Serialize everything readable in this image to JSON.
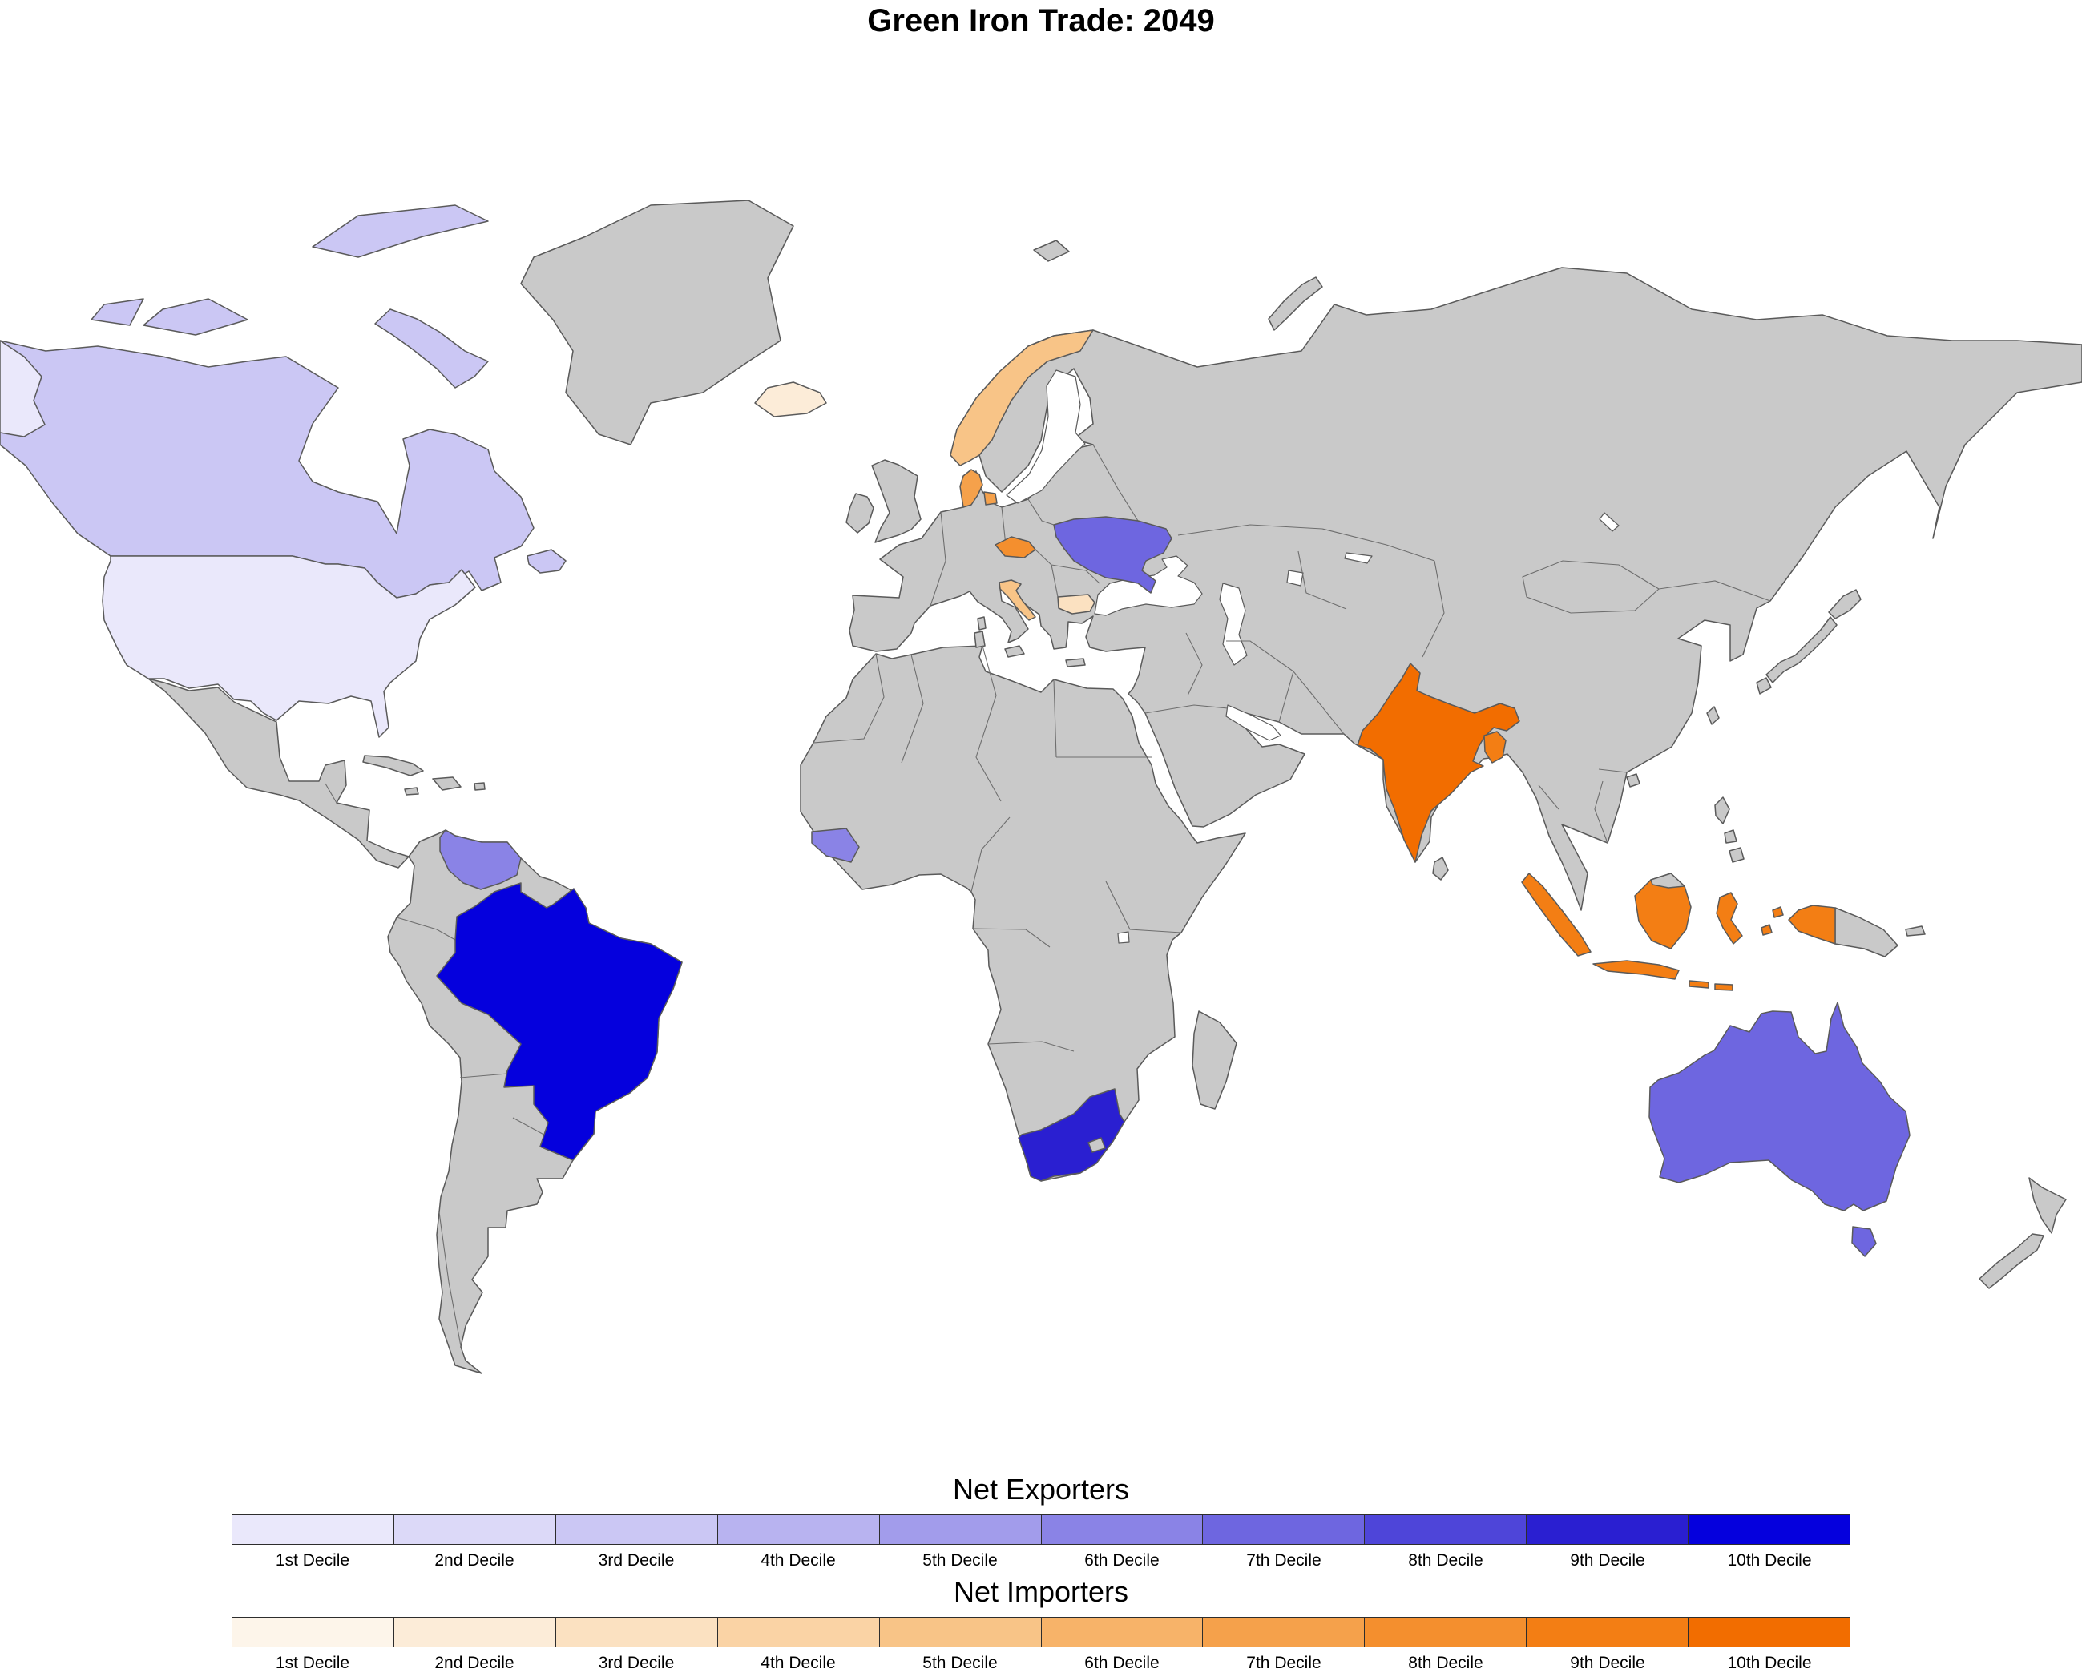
{
  "title": "Green Iron Trade: 2049",
  "legends": {
    "exporters": {
      "title": "Net Exporters",
      "decile_labels": [
        "1st Decile",
        "2nd Decile",
        "3rd Decile",
        "4th Decile",
        "5th Decile",
        "6th Decile",
        "7th Decile",
        "8th Decile",
        "9th Decile",
        "10th Decile"
      ],
      "colors": [
        "#eae8fb",
        "#dcd9f8",
        "#cbc7f4",
        "#b8b3f0",
        "#a29ceb",
        "#8a83e6",
        "#6e66e0",
        "#4e45d9",
        "#2a1fd1",
        "#0500dd"
      ]
    },
    "importers": {
      "title": "Net Importers",
      "decile_labels": [
        "1st Decile",
        "2nd Decile",
        "3rd Decile",
        "4th Decile",
        "5th Decile",
        "6th Decile",
        "7th Decile",
        "8th Decile",
        "9th Decile",
        "10th Decile"
      ],
      "colors": [
        "#fdf5ea",
        "#fcecd8",
        "#fbe1c1",
        "#fad3a5",
        "#f8c487",
        "#f7b369",
        "#f5a14b",
        "#f48f2e",
        "#f37e14",
        "#f26d00"
      ]
    }
  },
  "map": {
    "land_color": "#c9c9c9",
    "border_color": "#5a5a5a",
    "ocean_color": "#ffffff",
    "countries": [
      {
        "id": "united-states",
        "label": "United States",
        "category": "exporter",
        "decile": 1
      },
      {
        "id": "canada",
        "label": "Canada",
        "category": "exporter",
        "decile": 3
      },
      {
        "id": "venezuela",
        "label": "Venezuela",
        "category": "exporter",
        "decile": 6
      },
      {
        "id": "brazil",
        "label": "Brazil",
        "category": "exporter",
        "decile": 10
      },
      {
        "id": "guinea",
        "label": "Guinea",
        "category": "exporter",
        "decile": 6
      },
      {
        "id": "south-africa",
        "label": "South Africa",
        "category": "exporter",
        "decile": 9
      },
      {
        "id": "ukraine",
        "label": "Ukraine",
        "category": "exporter",
        "decile": 7
      },
      {
        "id": "australia",
        "label": "Australia",
        "category": "exporter",
        "decile": 7
      },
      {
        "id": "iceland",
        "label": "Iceland",
        "category": "importer",
        "decile": 2
      },
      {
        "id": "norway",
        "label": "Norway",
        "category": "importer",
        "decile": 5
      },
      {
        "id": "denmark",
        "label": "Denmark",
        "category": "importer",
        "decile": 7
      },
      {
        "id": "czechia",
        "label": "Czechia",
        "category": "importer",
        "decile": 8
      },
      {
        "id": "croatia",
        "label": "Croatia",
        "category": "importer",
        "decile": 5
      },
      {
        "id": "bulgaria",
        "label": "Bulgaria",
        "category": "importer",
        "decile": 3
      },
      {
        "id": "india",
        "label": "India",
        "category": "importer",
        "decile": 10
      },
      {
        "id": "bangladesh",
        "label": "Bangladesh",
        "category": "importer",
        "decile": 9
      },
      {
        "id": "indonesia",
        "label": "Indonesia",
        "category": "importer",
        "decile": 9
      }
    ]
  }
}
